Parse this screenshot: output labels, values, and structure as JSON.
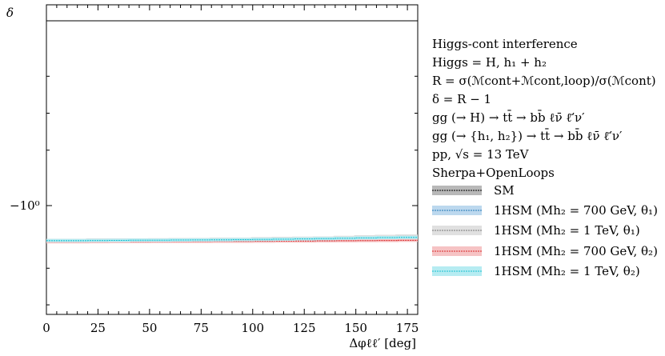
{
  "chart_data": {
    "type": "line",
    "title": "",
    "ylabel": "δ",
    "xlabel": "Δφ_ℓℓ' [deg]",
    "xlabel_display": "Δφℓℓ′ [deg]",
    "xlim": [
      0,
      180
    ],
    "x_ticks": [
      0,
      25,
      50,
      75,
      100,
      125,
      150,
      175
    ],
    "x_tick_labels": [
      "0",
      "25",
      "50",
      "75",
      "100",
      "125",
      "150",
      "175"
    ],
    "y_scale": "symlog",
    "y_tick_label": "−10⁰",
    "reference_line": "δ = 0",
    "x": [
      0,
      10,
      20,
      30,
      40,
      50,
      60,
      70,
      80,
      90,
      100,
      110,
      120,
      130,
      140,
      150,
      160,
      170,
      180
    ],
    "series": [
      {
        "name": "SM",
        "color": "#000000",
        "values": [
          -1.47,
          -1.47,
          -1.468,
          -1.466,
          -1.464,
          -1.462,
          -1.46,
          -1.457,
          -1.453,
          -1.45,
          -1.446,
          -1.442,
          -1.437,
          -1.431,
          -1.424,
          -1.416,
          -1.409,
          -1.403,
          -1.4
        ]
      },
      {
        "name": "1HSM (M_h2 = 700 GeV, θ1)",
        "color": "#1f77b4",
        "values": [
          -1.472,
          -1.472,
          -1.47,
          -1.469,
          -1.467,
          -1.465,
          -1.463,
          -1.461,
          -1.458,
          -1.455,
          -1.452,
          -1.448,
          -1.444,
          -1.439,
          -1.434,
          -1.428,
          -1.423,
          -1.419,
          -1.416
        ]
      },
      {
        "name": "1HSM (M_h2 = 1 TeV, θ1)",
        "color": "#777777",
        "values": [
          -1.471,
          -1.471,
          -1.469,
          -1.467,
          -1.465,
          -1.463,
          -1.461,
          -1.458,
          -1.455,
          -1.451,
          -1.447,
          -1.443,
          -1.438,
          -1.432,
          -1.425,
          -1.418,
          -1.411,
          -1.405,
          -1.402
        ]
      },
      {
        "name": "1HSM (M_h2 = 700 GeV, θ2)",
        "color": "#d62728",
        "values": [
          -1.492,
          -1.492,
          -1.491,
          -1.49,
          -1.489,
          -1.488,
          -1.487,
          -1.486,
          -1.485,
          -1.484,
          -1.483,
          -1.481,
          -1.479,
          -1.477,
          -1.475,
          -1.473,
          -1.471,
          -1.469,
          -1.468
        ]
      },
      {
        "name": "1HSM (M_h2 = 1 TeV, θ2)",
        "color": "#17becf",
        "values": [
          -1.473,
          -1.473,
          -1.471,
          -1.47,
          -1.468,
          -1.466,
          -1.464,
          -1.462,
          -1.46,
          -1.457,
          -1.454,
          -1.45,
          -1.446,
          -1.441,
          -1.436,
          -1.43,
          -1.425,
          -1.421,
          -1.418
        ]
      }
    ],
    "info_lines": [
      "Higgs-cont interference",
      "Higgs = H, h₁ + h₂",
      "R = σ(ℳcont+ℳcont,loop)/σ(ℳcont)",
      "δ = R − 1",
      "gg (→ H) → tt̄ → bb̄ ℓν̄ ℓ̄′ν′",
      "gg (→ {h₁, h₂}) → tt̄ → bb̄ ℓν̄ ℓ̄′ν′",
      "pp, √s = 13 TeV",
      "Sherpa+OpenLoops"
    ],
    "legend": [
      {
        "label": "SM",
        "color": "#000000",
        "band": "#b8b8b8"
      },
      {
        "label": "1HSM (Mh₂ = 700 GeV, θ₁)",
        "color": "#1f77b4",
        "band": "#bcd8ee"
      },
      {
        "label": "1HSM (Mh₂ = 1 TeV, θ₁)",
        "color": "#777777",
        "band": "#e0e0e0"
      },
      {
        "label": "1HSM (Mh₂ = 700 GeV, θ₂)",
        "color": "#d62728",
        "band": "#f6c3c4"
      },
      {
        "label": "1HSM (Mh₂ = 1 TeV, θ₂)",
        "color": "#17becf",
        "band": "#b6ecf2"
      }
    ],
    "legend_position": "right"
  }
}
